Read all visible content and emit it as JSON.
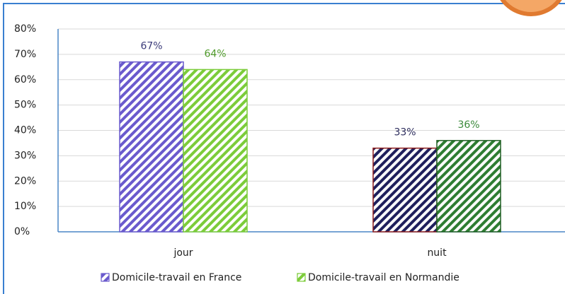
{
  "chart_data": {
    "type": "bar",
    "categories": [
      "jour",
      "nuit"
    ],
    "series": [
      {
        "name": "Domicile-travail en France",
        "color": "#6a5acd",
        "colors": [
          "#6a5acd",
          "#1f1f5c"
        ],
        "edge_colors": [
          "#6a5acd",
          "#8b1a1a"
        ],
        "label_colors": [
          "#3b3b7a",
          "#2e2e5e"
        ],
        "values": [
          67,
          33
        ],
        "value_labels": [
          "67%",
          "33%"
        ]
      },
      {
        "name": "Domicile-travail en Normandie",
        "color": "#7ccc3a",
        "colors": [
          "#7ccc3a",
          "#2e7d32"
        ],
        "edge_colors": [
          "#7ccc3a",
          "#1e5e22"
        ],
        "label_colors": [
          "#4f9a2a",
          "#3c8a3c"
        ],
        "values": [
          64,
          36
        ],
        "value_labels": [
          "64%",
          "36%"
        ]
      }
    ],
    "ylim": [
      0,
      80
    ],
    "yticks": [
      {
        "value": 0,
        "label": "0%"
      },
      {
        "value": 10,
        "label": "10%"
      },
      {
        "value": 20,
        "label": "20%"
      },
      {
        "value": 30,
        "label": "30%"
      },
      {
        "value": 40,
        "label": "40%"
      },
      {
        "value": 50,
        "label": "50%"
      },
      {
        "value": 60,
        "label": "60%"
      },
      {
        "value": 70,
        "label": "70%"
      },
      {
        "value": 80,
        "label": "80%"
      }
    ],
    "grid": true,
    "legend": "bottom",
    "hatch": true
  }
}
